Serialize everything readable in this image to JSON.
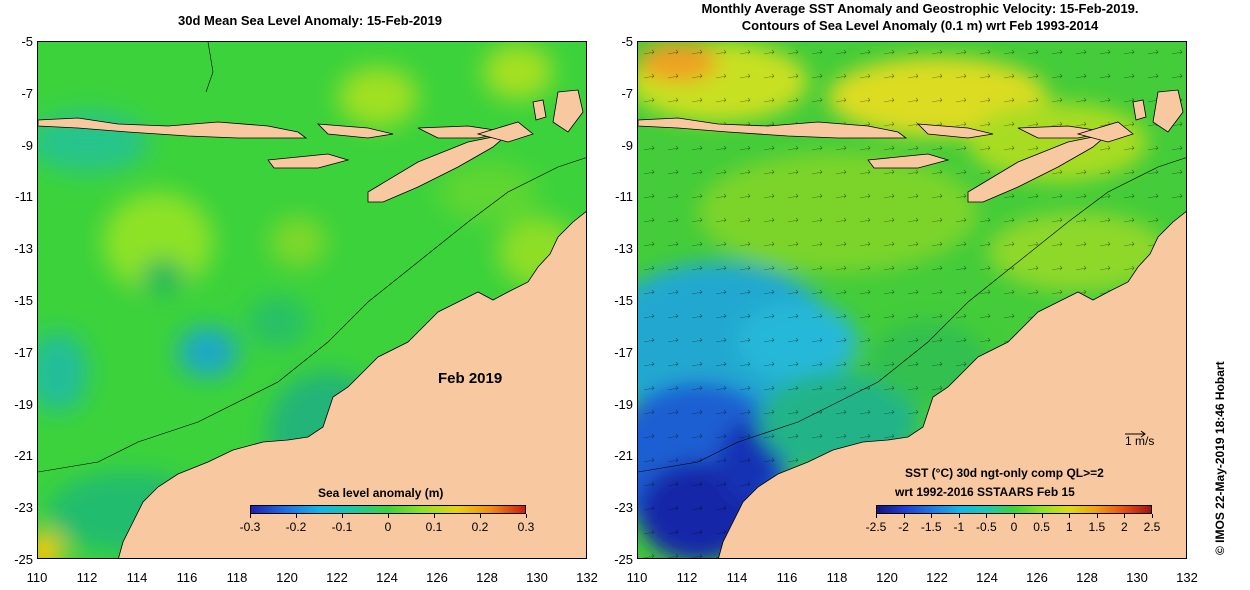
{
  "left_panel": {
    "title": "30d Mean Sea Level Anomaly: 15-Feb-2019",
    "annotation": "Feb 2019",
    "legend_title": "Sea level anomaly (m)",
    "legend_ticks": [
      "-0.3",
      "-0.2",
      "-0.1",
      "0",
      "0.1",
      "0.2",
      "0.3"
    ]
  },
  "right_panel": {
    "title_line1": "Monthly Average SST Anomaly  and Geostrophic Velocity: 15-Feb-2019.",
    "title_line2": "Contours of Sea Level Anomaly (0.1 m) wrt Feb 1993-2014",
    "scale_label": "1 m/s",
    "legend_line1": "SST (°C) 30d ngt-only comp QL>=2",
    "legend_line2": "wrt 1992-2016 SSTAARS Feb 15",
    "legend_ticks": [
      "-2.5",
      "-2",
      "-1.5",
      "-1",
      "-0.5",
      "0",
      "0.5",
      "1",
      "1.5",
      "2",
      "2.5"
    ]
  },
  "axes": {
    "lat_labels": [
      "-5",
      "-7",
      "-9",
      "-11",
      "-13",
      "-15",
      "-17",
      "-19",
      "-21",
      "-23",
      "-25"
    ],
    "lon_labels": [
      "110",
      "112",
      "114",
      "116",
      "118",
      "120",
      "122",
      "124",
      "126",
      "128",
      "130",
      "132"
    ]
  },
  "credit": "© IMOS 22-May-2019 18:46 Hobart",
  "colors": {
    "land": "#f8c8a0",
    "sea_green": "#3cd23c",
    "sea_light": "#7ee028",
    "sea_teal": "#20be78",
    "sea_blue": "#1e78dc",
    "sea_dark": "#1428b4"
  }
}
